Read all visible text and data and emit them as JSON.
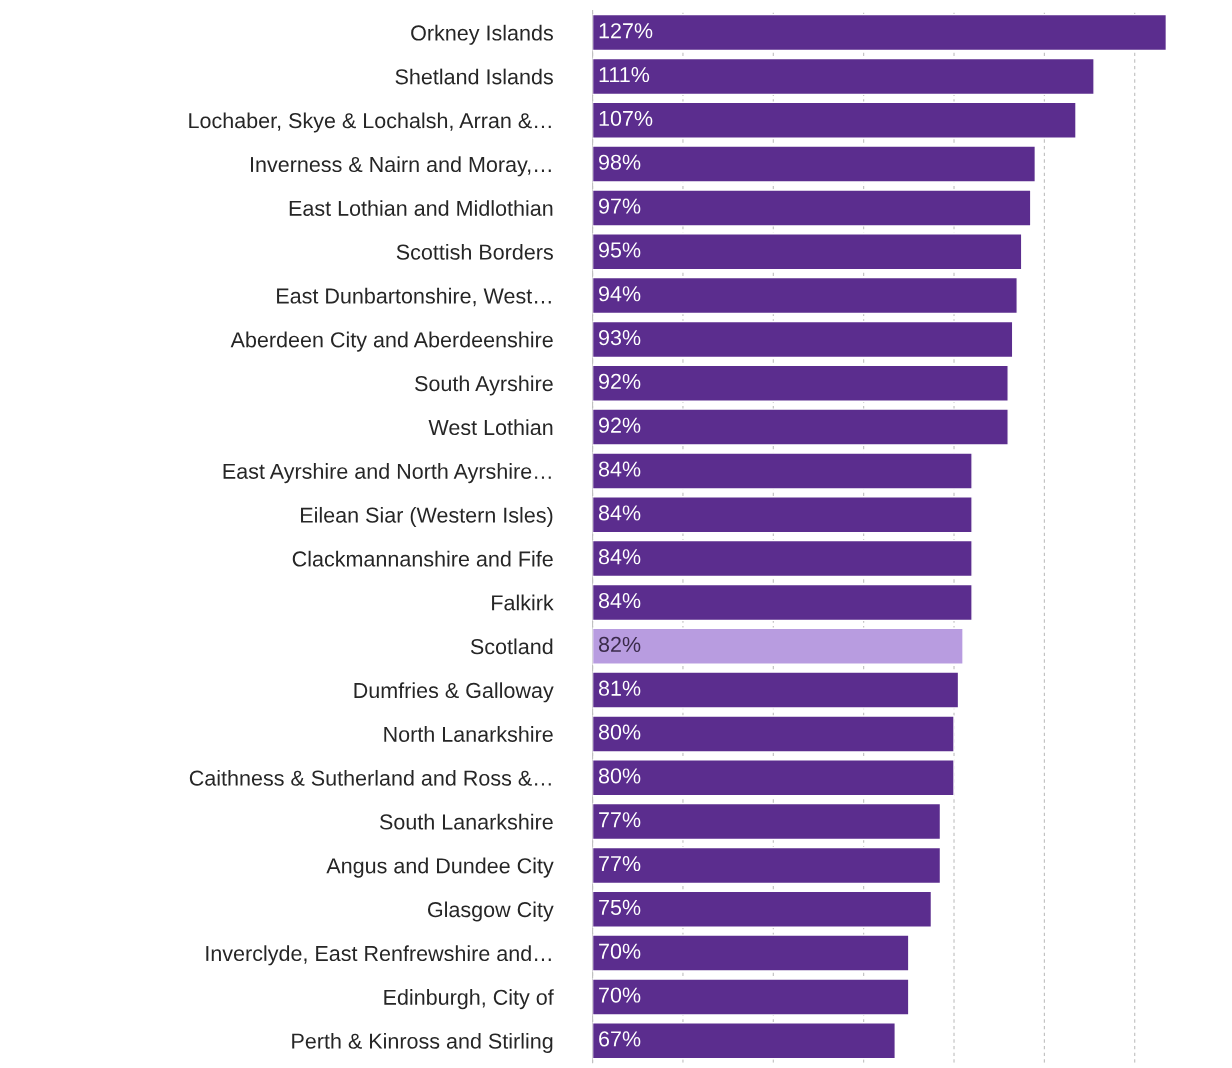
{
  "chart_data": {
    "type": "bar",
    "orientation": "horizontal",
    "categories": [
      "Orkney Islands",
      "Shetland Islands",
      "Lochaber, Skye & Lochalsh, Arran &…",
      "Inverness & Nairn and Moray,…",
      "East Lothian and Midlothian",
      "Scottish Borders",
      "East Dunbartonshire, West…",
      "Aberdeen City and Aberdeenshire",
      "South Ayrshire",
      "West Lothian",
      "East Ayrshire and North Ayrshire…",
      "Eilean Siar (Western Isles)",
      "Clackmannanshire and Fife",
      "Falkirk",
      "Scotland",
      "Dumfries & Galloway",
      "North Lanarkshire",
      "Caithness & Sutherland and Ross &…",
      "South Lanarkshire",
      "Angus and Dundee City",
      "Glasgow City",
      "Inverclyde, East Renfrewshire and…",
      "Edinburgh, City of",
      "Perth & Kinross and Stirling"
    ],
    "values": [
      127,
      111,
      107,
      98,
      97,
      95,
      94,
      93,
      92,
      92,
      84,
      84,
      84,
      84,
      82,
      81,
      80,
      80,
      77,
      77,
      75,
      70,
      70,
      67
    ],
    "value_labels": [
      "127%",
      "111%",
      "107%",
      "98%",
      "97%",
      "95%",
      "94%",
      "93%",
      "92%",
      "92%",
      "84%",
      "84%",
      "84%",
      "84%",
      "82%",
      "81%",
      "80%",
      "80%",
      "77%",
      "77%",
      "75%",
      "70%",
      "70%",
      "67%"
    ],
    "colors": [
      "#5b2d8e",
      "#5b2d8e",
      "#5b2d8e",
      "#5b2d8e",
      "#5b2d8e",
      "#5b2d8e",
      "#5b2d8e",
      "#5b2d8e",
      "#5b2d8e",
      "#5b2d8e",
      "#5b2d8e",
      "#5b2d8e",
      "#5b2d8e",
      "#5b2d8e",
      "#b89ce0",
      "#5b2d8e",
      "#5b2d8e",
      "#5b2d8e",
      "#5b2d8e",
      "#5b2d8e",
      "#5b2d8e",
      "#5b2d8e",
      "#5b2d8e",
      "#5b2d8e"
    ],
    "grid": "x",
    "tick_labels": "y"
  }
}
